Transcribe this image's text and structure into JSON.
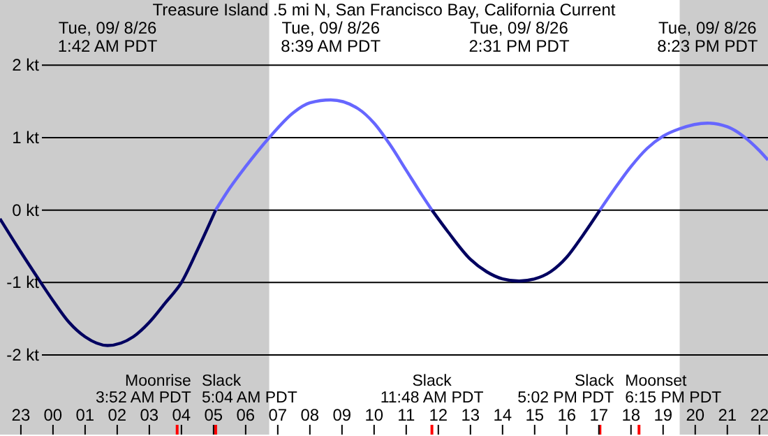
{
  "chart_data": {
    "type": "line",
    "title": "Treasure Island .5 mi N, San Francisco Bay, California Current",
    "xlim": [
      "--09-07T22:21",
      "--09-08T22:16"
    ],
    "xticks": [
      {
        "value": "--09-07T23:00",
        "label": "23"
      },
      {
        "value": "--09-08T00:00",
        "label": "00"
      },
      {
        "value": "--09-08T01:00",
        "label": "01"
      },
      {
        "value": "--09-08T02:00",
        "label": "02"
      },
      {
        "value": "--09-08T03:00",
        "label": "03"
      },
      {
        "value": "--09-08T04:00",
        "label": "04"
      },
      {
        "value": "--09-08T05:00",
        "label": "05"
      },
      {
        "value": "--09-08T06:00",
        "label": "06"
      },
      {
        "value": "--09-08T07:00",
        "label": "07"
      },
      {
        "value": "--09-08T08:00",
        "label": "08"
      },
      {
        "value": "--09-08T09:00",
        "label": "09"
      },
      {
        "value": "--09-08T10:00",
        "label": "10"
      },
      {
        "value": "--09-08T11:00",
        "label": "11"
      },
      {
        "value": "--09-08T12:00",
        "label": "12"
      },
      {
        "value": "--09-08T13:00",
        "label": "13"
      },
      {
        "value": "--09-08T14:00",
        "label": "14"
      },
      {
        "value": "--09-08T15:00",
        "label": "15"
      },
      {
        "value": "--09-08T16:00",
        "label": "16"
      },
      {
        "value": "--09-08T17:00",
        "label": "17"
      },
      {
        "value": "--09-08T18:00",
        "label": "18"
      },
      {
        "value": "--09-08T19:00",
        "label": "19"
      },
      {
        "value": "--09-08T20:00",
        "label": "20"
      },
      {
        "value": "--09-08T21:00",
        "label": "21"
      },
      {
        "value": "--09-08T22:00",
        "label": "22"
      }
    ],
    "ylim": [
      -3.1,
      2.9
    ],
    "yticks": [
      {
        "value": -2,
        "label": "-2 kt"
      },
      {
        "value": -1,
        "label": "-1 kt"
      },
      {
        "value": 0,
        "label": "0 kt"
      },
      {
        "value": 1,
        "label": "1 kt"
      },
      {
        "value": 2,
        "label": "2 kt"
      }
    ],
    "grid": "y",
    "marker": "none",
    "line_style": "solid",
    "series": [
      {
        "color": "#000060",
        "x": [
          "--09-07T22:21",
          "--09-07T23:00",
          "--09-07T23:30",
          "--09-08T00:00",
          "--09-08T00:30",
          "--09-08T01:00",
          "--09-08T01:42",
          "--09-08T02:30",
          "--09-08T03:00",
          "--09-08T03:30",
          "--09-08T04:00",
          "--09-08T04:30",
          "--09-08T05:04",
          "--09-08T08:39",
          "--09-08T11:48",
          "--09-08T12:18",
          "--09-08T13:00",
          "--09-08T13:30",
          "--09-08T14:00",
          "--09-08T14:31",
          "--09-08T15:00",
          "--09-08T15:30",
          "--09-08T16:00",
          "--09-08T16:30",
          "--09-08T17:02"
        ],
        "values": [
          -0.12,
          -0.58,
          -0.92,
          -1.25,
          -1.55,
          -1.75,
          -1.87,
          -1.75,
          -1.55,
          -1.28,
          -1,
          -0.55,
          0,
          null,
          0,
          -0.3,
          -0.68,
          -0.85,
          -0.95,
          -0.98,
          -0.95,
          -0.85,
          -0.65,
          -0.35,
          0
        ]
      },
      {
        "color": "#6666ff",
        "x": [
          "--09-08T05:04",
          "--09-08T05:30",
          "--09-08T06:00",
          "--09-08T06:44",
          "--09-08T07:30",
          "--09-08T08:00",
          "--09-08T08:39",
          "--09-08T09:30",
          "--09-08T10:00",
          "--09-08T10:30",
          "--09-08T11:00",
          "--09-08T11:30",
          "--09-08T11:48",
          "--09-08T14:31",
          "--09-08T17:02",
          "--09-08T17:30",
          "--09-08T18:00",
          "--09-08T18:30",
          "--09-08T19:00",
          "--09-08T19:30",
          "--09-08T20:23",
          "--09-08T21:00",
          "--09-08T21:30",
          "--09-08T22:00",
          "--09-08T22:16"
        ],
        "values": [
          0,
          0.3,
          0.6,
          1,
          1.35,
          1.48,
          1.52,
          1.4,
          1.2,
          0.9,
          0.55,
          0.2,
          0,
          null,
          0,
          0.3,
          0.6,
          0.85,
          1.02,
          1.12,
          1.2,
          1.15,
          1.02,
          0.82,
          0.69
        ]
      }
    ],
    "bands": [
      {
        "axis": "x",
        "from": "--09-07T22:21",
        "to": "--09-08T06:44",
        "color": "#cccccc"
      },
      {
        "axis": "x",
        "from": "--09-08T19:31",
        "to": "--09-08T22:16",
        "color": "#cccccc"
      }
    ],
    "ref_lines": [
      {
        "axis": "x",
        "value": "--09-08T03:52",
        "label": "Moonrise\n3:52 AM PDT",
        "color": "#ff0000"
      },
      {
        "axis": "x",
        "value": "--09-08T05:04",
        "label": "Slack\n5:04 AM PDT",
        "color": "#ff0000"
      },
      {
        "axis": "x",
        "value": "--09-08T11:48",
        "label": "Slack\n11:48 AM PDT",
        "color": "#ff0000"
      },
      {
        "axis": "x",
        "value": "--09-08T17:02",
        "label": "Slack\n5:02 PM PDT",
        "color": "#ff0000"
      },
      {
        "axis": "x",
        "value": "--09-08T18:15",
        "label": "Moonset\n6:15 PM PDT",
        "color": "#ff0000"
      }
    ],
    "annotations": [
      "Tue, 09/ 8/26\n1:42 AM PDT",
      "Tue, 09/ 8/26\n8:39 AM PDT",
      "Tue, 09/ 8/26\n2:31 PM PDT",
      "Tue, 09/ 8/26\n8:23 PM PDT"
    ]
  }
}
